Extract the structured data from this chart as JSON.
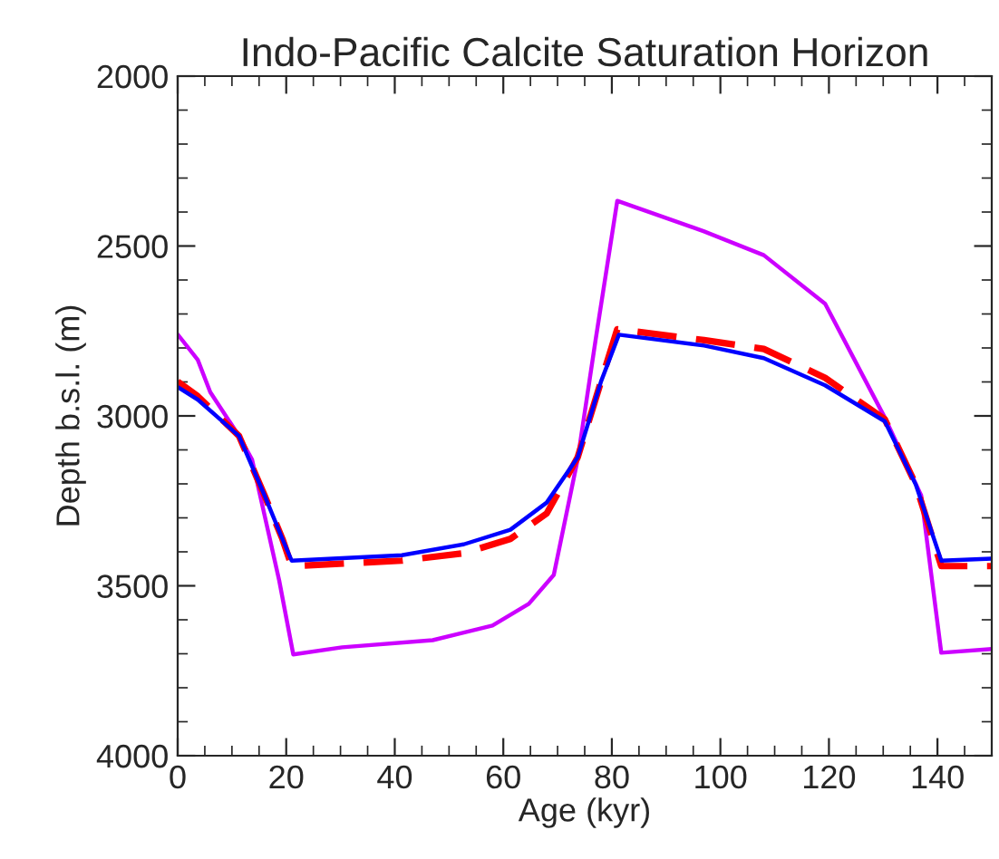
{
  "chart_data": {
    "type": "line",
    "title": "Indo-Pacific Calcite Saturation Horizon",
    "xlabel": "Age (kyr)",
    "ylabel": "Depth b.s.l. (m)",
    "xlim": [
      0,
      150
    ],
    "xticks": [
      0,
      20,
      40,
      60,
      80,
      100,
      120,
      140
    ],
    "ylim": [
      4000,
      2000
    ],
    "yticks": [
      2000,
      2500,
      3000,
      3500,
      4000
    ],
    "grid": false,
    "legend": false,
    "series": [
      {
        "color": "#cc00ff",
        "line_style": "solid",
        "x": [
          0,
          3.7,
          6,
          11.3,
          13.7,
          18.7,
          21.3,
          30.3,
          47,
          58,
          64.7,
          69.3,
          73.7,
          77,
          81,
          97,
          108,
          119.3,
          130.3,
          137,
          140.7,
          150
        ],
        "values": [
          2760,
          2835,
          2930,
          3059,
          3128,
          3484,
          3702,
          3681,
          3660,
          3617,
          3553,
          3468,
          3128,
          2777,
          2367,
          2457,
          2527,
          2670,
          3005,
          3234,
          3697,
          3686
        ]
      },
      {
        "color": "#ff0000",
        "line_style": "dashed",
        "x": [
          0,
          3.7,
          11.3,
          16,
          19.3,
          21,
          41.3,
          52.7,
          61.3,
          68,
          73.7,
          78,
          81,
          97,
          108,
          119.3,
          130.3,
          136,
          140.7,
          150
        ],
        "values": [
          2899,
          2942,
          3059,
          3234,
          3362,
          3442,
          3426,
          3404,
          3362,
          3287,
          3122,
          2899,
          2745,
          2777,
          2803,
          2888,
          3010,
          3202,
          3442,
          3442
        ]
      },
      {
        "color": "#0000ff",
        "line_style": "solid",
        "x": [
          0,
          3.7,
          11.3,
          16,
          19.3,
          21,
          41.3,
          52.7,
          61.3,
          68,
          73.7,
          78,
          81.3,
          97,
          108,
          119.3,
          130.3,
          136,
          140.7,
          150
        ],
        "values": [
          2915,
          2952,
          3059,
          3234,
          3362,
          3426,
          3410,
          3378,
          3335,
          3255,
          3122,
          2899,
          2761,
          2793,
          2830,
          2910,
          3016,
          3202,
          3426,
          3420
        ]
      }
    ]
  }
}
